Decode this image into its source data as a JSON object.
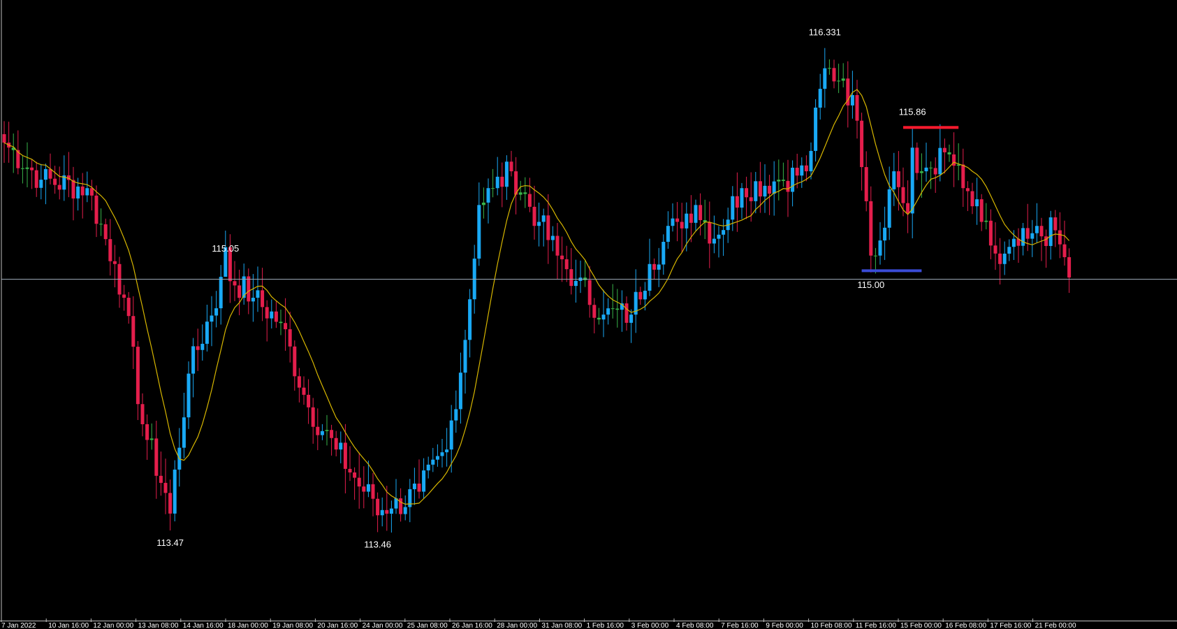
{
  "colors": {
    "background": "#000000",
    "bull": "#19a9f5",
    "bear": "#e41e4c",
    "doji": "#39b54a",
    "ma": "#d7b600",
    "hline": "#9aa7b4",
    "resistance": "#ff1a2e",
    "support": "#3a4bd6",
    "text": "#ffffff"
  },
  "chart_data": {
    "type": "candlestick",
    "ylim": [
      113.3,
      116.45
    ],
    "hline": 114.96,
    "x_ticks": [
      "7 Jan 2022",
      "10 Jan 16:00",
      "12 Jan 00:00",
      "13 Jan 08:00",
      "14 Jan 16:00",
      "18 Jan 00:00",
      "19 Jan 08:00",
      "20 Jan 16:00",
      "24 Jan 00:00",
      "25 Jan 08:00",
      "26 Jan 16:00",
      "28 Jan 00:00",
      "31 Jan 08:00",
      "1 Feb 16:00",
      "3 Feb 00:00",
      "4 Feb 08:00",
      "7 Feb 16:00",
      "9 Feb 00:00",
      "10 Feb 08:00",
      "11 Feb 16:00",
      "15 Feb 00:00",
      "16 Feb 08:00",
      "17 Feb 16:00",
      "21 Feb 00:00"
    ],
    "annotations": [
      {
        "text": "116.331",
        "price": 116.331,
        "at": 178
      },
      {
        "text": "115.86",
        "price": 115.86,
        "at": 197
      },
      {
        "text": "115.05",
        "price": 115.05,
        "at": 48
      },
      {
        "text": "115.00",
        "price": 115.0,
        "at": 188
      },
      {
        "text": "113.47",
        "price": 113.47,
        "at": 36
      },
      {
        "text": "113.46",
        "price": 113.46,
        "at": 81
      }
    ],
    "levels": [
      {
        "name": "resistance",
        "price": 115.86,
        "from": 195,
        "to": 207
      },
      {
        "name": "support",
        "price": 115.01,
        "from": 186,
        "to": 199
      }
    ],
    "key_closes": [
      [
        0,
        115.77
      ],
      [
        8,
        115.55
      ],
      [
        18,
        115.5
      ],
      [
        24,
        115.05
      ],
      [
        26,
        114.85
      ],
      [
        30,
        114.1
      ],
      [
        36,
        113.6
      ],
      [
        40,
        114.4
      ],
      [
        48,
        115.0
      ],
      [
        54,
        114.85
      ],
      [
        60,
        114.7
      ],
      [
        66,
        114.2
      ],
      [
        72,
        113.95
      ],
      [
        78,
        113.7
      ],
      [
        84,
        113.6
      ],
      [
        90,
        113.7
      ],
      [
        96,
        113.95
      ],
      [
        100,
        114.6
      ],
      [
        103,
        115.4
      ],
      [
        106,
        115.5
      ],
      [
        110,
        115.6
      ],
      [
        116,
        115.3
      ],
      [
        120,
        115.1
      ],
      [
        124,
        114.95
      ],
      [
        130,
        114.75
      ],
      [
        136,
        114.75
      ],
      [
        140,
        115.05
      ],
      [
        146,
        115.3
      ],
      [
        150,
        115.4
      ],
      [
        154,
        115.2
      ],
      [
        160,
        115.5
      ],
      [
        168,
        115.55
      ],
      [
        174,
        115.6
      ],
      [
        178,
        116.2
      ],
      [
        182,
        116.15
      ],
      [
        185,
        115.9
      ],
      [
        189,
        115.1
      ],
      [
        193,
        115.6
      ],
      [
        196,
        115.35
      ],
      [
        199,
        115.6
      ],
      [
        205,
        115.7
      ],
      [
        208,
        115.5
      ],
      [
        212,
        115.3
      ],
      [
        216,
        115.05
      ],
      [
        222,
        115.2
      ],
      [
        228,
        115.25
      ],
      [
        231,
        114.97
      ]
    ]
  }
}
